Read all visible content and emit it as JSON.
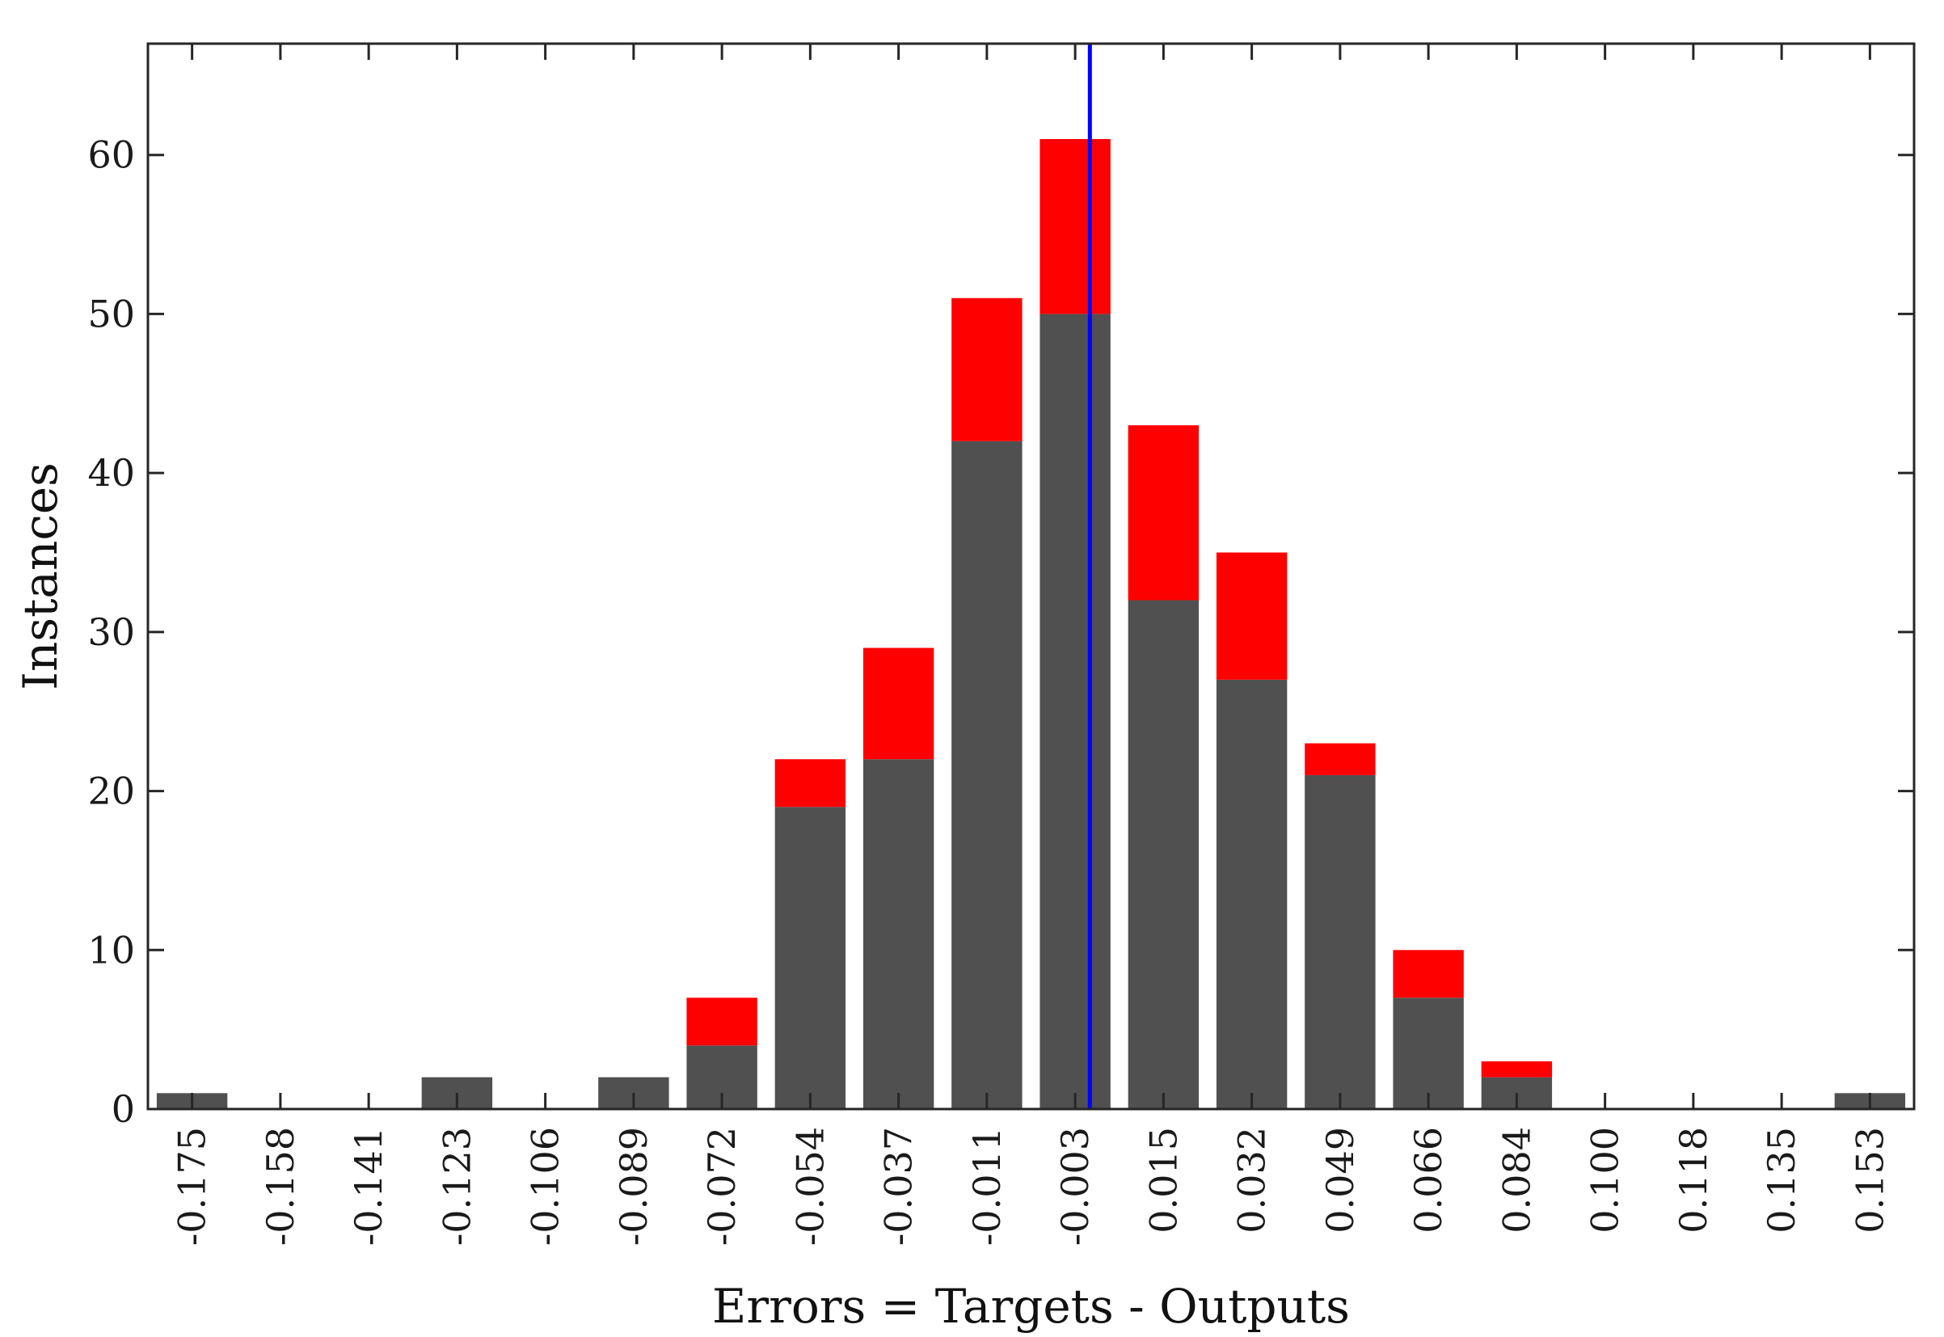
{
  "chart_data": {
    "type": "bar",
    "stacked": true,
    "xlabel": "Errors = Targets - Outputs",
    "ylabel": "Instances",
    "categories": [
      "-0.175",
      "-0.158",
      "-0.141",
      "-0.123",
      "-0.106",
      "-0.089",
      "-0.072",
      "-0.054",
      "-0.037",
      "-0.011",
      "-0.003",
      "0.015",
      "0.032",
      "0.049",
      "0.066",
      "0.084",
      "0.100",
      "0.118",
      "0.135",
      "0.153"
    ],
    "series": [
      {
        "color": "#505050",
        "values": [
          1,
          0,
          0,
          2,
          0,
          2,
          4,
          19,
          22,
          42,
          50,
          32,
          27,
          21,
          7,
          2,
          0,
          0,
          0,
          1
        ]
      },
      {
        "color": "#ff0000",
        "values": [
          0,
          0,
          0,
          0,
          0,
          0,
          3,
          3,
          7,
          9,
          11,
          11,
          8,
          2,
          3,
          1,
          0,
          0,
          0,
          0
        ]
      }
    ],
    "ylim": [
      0,
      67
    ],
    "yticks": [
      "0",
      "10",
      "20",
      "30",
      "40",
      "50",
      "60"
    ],
    "zero_error_line": {
      "x": 0,
      "color": "#0000ff"
    },
    "grid": false,
    "legend": "none"
  }
}
